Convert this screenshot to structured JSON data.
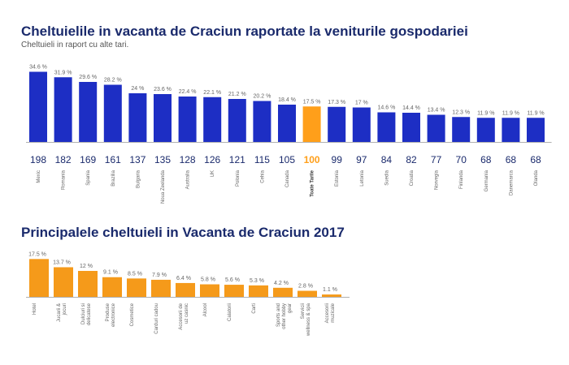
{
  "colors": {
    "blue": "#1d2ec4",
    "highlight": "#ff9f1a",
    "orange": "#f59a1a",
    "axis": "#b0b0b0",
    "label": "#666666",
    "title": "#1a2a6c"
  },
  "chart_data": [
    {
      "type": "bar",
      "title": "Cheltuielile in vacanta de Craciun raportate la veniturile gospodariei",
      "subtitle": "Cheltuieli in raport cu alte tari.",
      "categories": [
        "Mexic",
        "Romania",
        "Spania",
        "Brazilia",
        "Bulgaria",
        "Noua Zeelanda",
        "Australia",
        "UK",
        "Polonia",
        "Cehia",
        "Canada",
        "Toate Tarile",
        "Estonia",
        "Letonia",
        "Suedia",
        "Croatia",
        "Norvegia",
        "Finlanda",
        "Germania",
        "Danemarca",
        "Olanda"
      ],
      "values": [
        34.6,
        31.9,
        29.6,
        28.2,
        24,
        23.6,
        22.4,
        22.1,
        21.2,
        20.2,
        18.4,
        17.5,
        17.3,
        17,
        14.6,
        14.4,
        13.4,
        12.3,
        11.9,
        11.9,
        11.9
      ],
      "value_labels": [
        "34.6 %",
        "31.9 %",
        "29.6 %",
        "28.2 %",
        "24 %",
        "23.6 %",
        "22.4 %",
        "22.1 %",
        "21.2 %",
        "20.2 %",
        "18.4 %",
        "17.5 %",
        "17.3 %",
        "17 %",
        "14.6 %",
        "14.4 %",
        "13.4 %",
        "12.3 %",
        "11.9 %",
        "11.9 %",
        "11.9 %"
      ],
      "index": [
        "198",
        "182",
        "169",
        "161",
        "137",
        "135",
        "128",
        "126",
        "121",
        "115",
        "105",
        "100",
        "99",
        "97",
        "84",
        "82",
        "77",
        "70",
        "68",
        "68",
        "68"
      ],
      "highlight_index": 11,
      "ylim": [
        0,
        36
      ]
    },
    {
      "type": "bar",
      "title": "Principalele cheltuieli in Vacanta de Craciun 2017",
      "categories": [
        "Hotel",
        "Jucarii & jocuri",
        "Dulciuri si delicatese",
        "Produse electronice",
        "Cosmetice",
        "Carduri cadou",
        "Accesorii de uz casnic",
        "Alcool",
        "Calatorii",
        "Carti",
        "Sports and other hobby gear",
        "Servicii wellness & spa",
        "Accesorii muzicale"
      ],
      "values": [
        17.5,
        13.7,
        12,
        9.1,
        8.5,
        7.9,
        6.4,
        5.8,
        5.6,
        5.3,
        4.2,
        2.8,
        1.1
      ],
      "value_labels": [
        "17.5 %",
        "13.7 %",
        "12 %",
        "9.1 %",
        "8.5 %",
        "7.9 %",
        "6.4 %",
        "5.8 %",
        "5.6 %",
        "5.3 %",
        "4.2 %",
        "2.8 %",
        "1.1 %"
      ],
      "ylim": [
        0,
        18
      ]
    }
  ]
}
